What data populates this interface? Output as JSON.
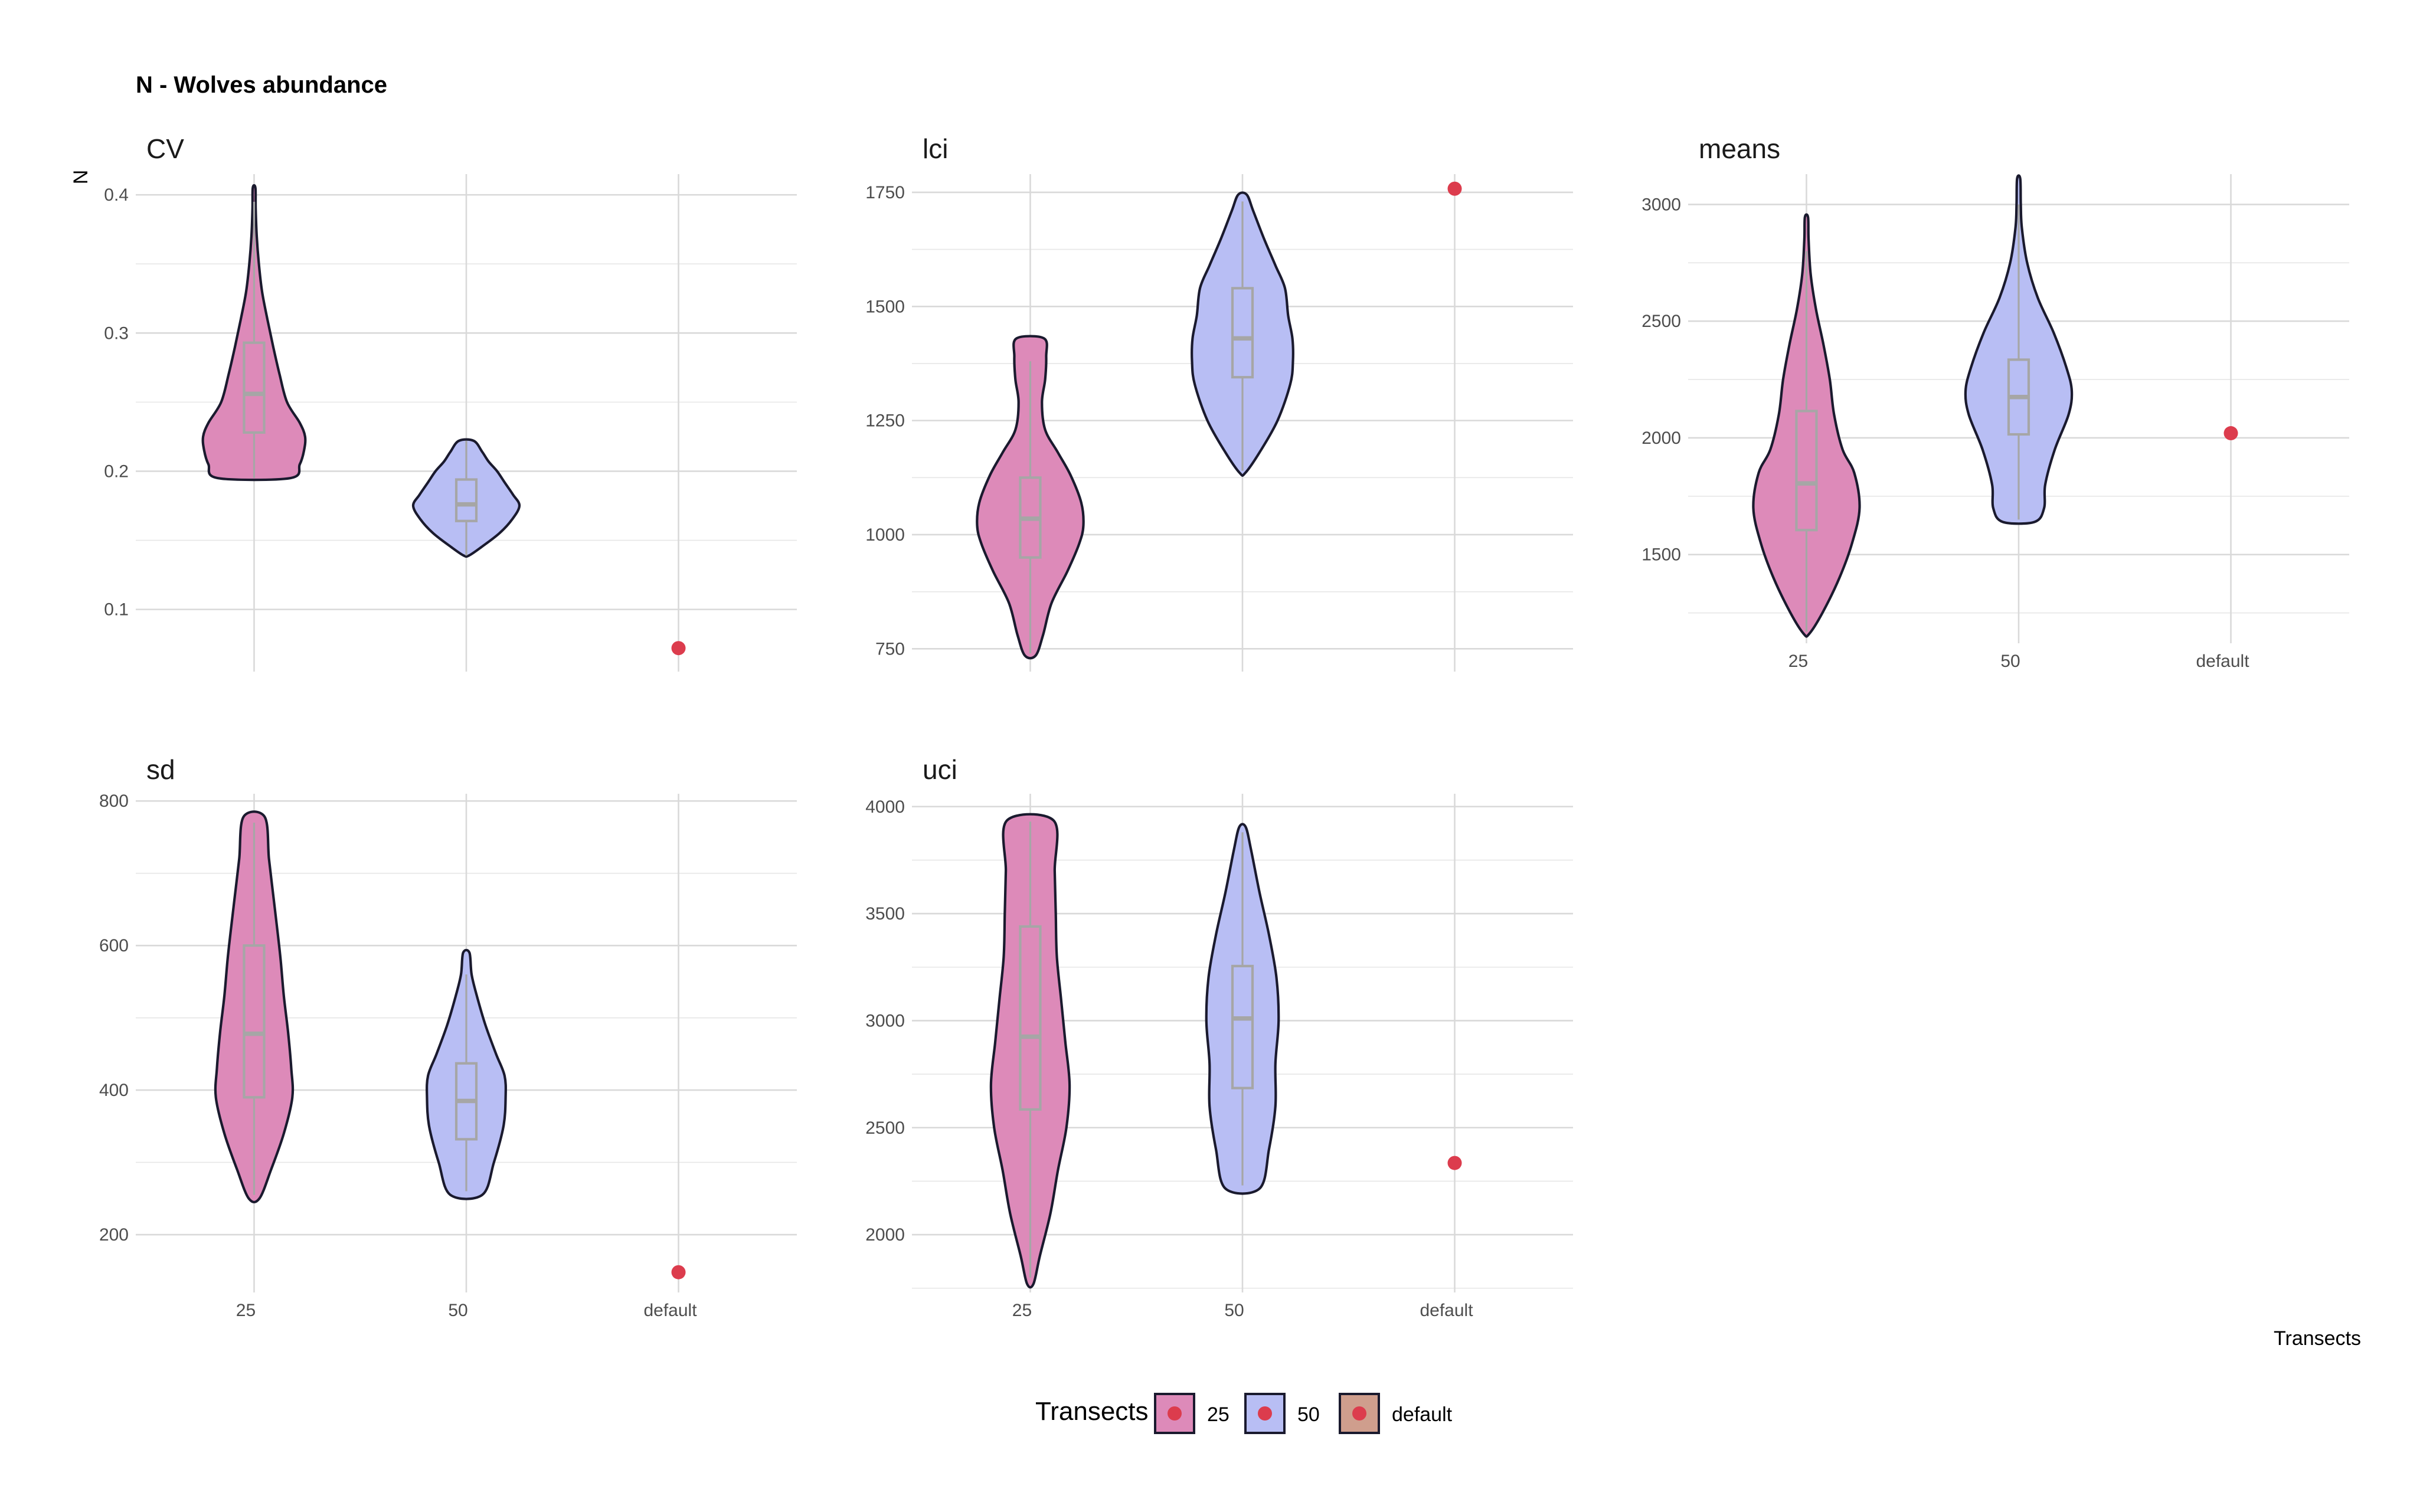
{
  "figure": {
    "title": "N - Wolves abundance",
    "y_axis_title": "N",
    "x_axis_title": "Transects"
  },
  "legend": {
    "title": "Transects",
    "items": [
      {
        "label": "25",
        "fill": "#dd8ab9"
      },
      {
        "label": "50",
        "fill": "#b8bef4"
      },
      {
        "label": "default",
        "fill": "#cf9e8d"
      }
    ],
    "point_color": "#dc3c4d",
    "position": "bottom"
  },
  "chart_data": [
    {
      "type": "violin",
      "facet": "CV",
      "categories": [
        "25",
        "50",
        "default"
      ],
      "ylim": [
        0.055,
        0.415
      ],
      "yticks": [
        0.1,
        0.2,
        0.3,
        0.4
      ],
      "ytick_labels": [
        "0.1",
        "0.2",
        "0.3",
        "0.4"
      ],
      "show_xticks": false,
      "series": [
        {
          "name": "25",
          "fill": "#dd8ab9",
          "violin": {
            "min": 0.195,
            "max": 0.405,
            "profile": [
              [
                0.195,
                0.68
              ],
              [
                0.205,
                0.86
              ],
              [
                0.215,
                0.94
              ],
              [
                0.225,
                0.96
              ],
              [
                0.235,
                0.86
              ],
              [
                0.25,
                0.62
              ],
              [
                0.27,
                0.48
              ],
              [
                0.29,
                0.36
              ],
              [
                0.31,
                0.25
              ],
              [
                0.33,
                0.15
              ],
              [
                0.35,
                0.09
              ],
              [
                0.37,
                0.05
              ],
              [
                0.39,
                0.03
              ],
              [
                0.405,
                0.025
              ]
            ]
          },
          "box": {
            "q1": 0.228,
            "median": 0.256,
            "q3": 0.293,
            "whisker_low": 0.195,
            "whisker_high": 0.395
          }
        },
        {
          "name": "50",
          "fill": "#b8bef4",
          "violin": {
            "min": 0.139,
            "max": 0.222,
            "profile": [
              [
                0.139,
                0.05
              ],
              [
                0.145,
                0.28
              ],
              [
                0.155,
                0.62
              ],
              [
                0.165,
                0.86
              ],
              [
                0.175,
                1.0
              ],
              [
                0.183,
                0.88
              ],
              [
                0.192,
                0.72
              ],
              [
                0.2,
                0.58
              ],
              [
                0.207,
                0.42
              ],
              [
                0.214,
                0.3
              ],
              [
                0.222,
                0.14
              ]
            ]
          },
          "box": {
            "q1": 0.164,
            "median": 0.176,
            "q3": 0.194,
            "whisker_low": 0.139,
            "whisker_high": 0.222
          }
        },
        {
          "name": "default",
          "point": 0.072
        }
      ]
    },
    {
      "type": "violin",
      "facet": "lci",
      "categories": [
        "25",
        "50",
        "default"
      ],
      "ylim": [
        700,
        1790
      ],
      "yticks": [
        750,
        1000,
        1250,
        1500,
        1750
      ],
      "ytick_labels": [
        "750",
        "1000",
        "1250",
        "1500",
        "1750"
      ],
      "show_xticks": false,
      "series": [
        {
          "name": "25",
          "fill": "#dd8ab9",
          "violin": {
            "min": 735,
            "max": 1430,
            "profile": [
              [
                735,
                0.1
              ],
              [
                780,
                0.24
              ],
              [
                850,
                0.4
              ],
              [
                920,
                0.7
              ],
              [
                980,
                0.92
              ],
              [
                1020,
                1.0
              ],
              [
                1070,
                0.96
              ],
              [
                1130,
                0.76
              ],
              [
                1180,
                0.52
              ],
              [
                1230,
                0.28
              ],
              [
                1290,
                0.22
              ],
              [
                1340,
                0.28
              ],
              [
                1390,
                0.3
              ],
              [
                1430,
                0.26
              ]
            ]
          },
          "box": {
            "q1": 950,
            "median": 1035,
            "q3": 1125,
            "whisker_low": 740,
            "whisker_high": 1380
          }
        },
        {
          "name": "50",
          "fill": "#b8bef4",
          "violin": {
            "min": 1135,
            "max": 1745,
            "profile": [
              [
                1135,
                0.05
              ],
              [
                1180,
                0.32
              ],
              [
                1250,
                0.66
              ],
              [
                1330,
                0.9
              ],
              [
                1380,
                0.95
              ],
              [
                1430,
                0.94
              ],
              [
                1480,
                0.86
              ],
              [
                1540,
                0.8
              ],
              [
                1590,
                0.62
              ],
              [
                1650,
                0.4
              ],
              [
                1710,
                0.2
              ],
              [
                1745,
                0.08
              ]
            ]
          },
          "box": {
            "q1": 1345,
            "median": 1430,
            "q3": 1540,
            "whisker_low": 1140,
            "whisker_high": 1730
          }
        },
        {
          "name": "default",
          "point": 1758
        }
      ]
    },
    {
      "type": "violin",
      "facet": "means",
      "categories": [
        "25",
        "50",
        "default"
      ],
      "ylim": [
        1120,
        3130
      ],
      "yticks": [
        1500,
        2000,
        2500,
        3000
      ],
      "ytick_labels": [
        "1500",
        "2000",
        "2500",
        "3000"
      ],
      "show_xticks": true,
      "series": [
        {
          "name": "25",
          "fill": "#dd8ab9",
          "violin": {
            "min": 1160,
            "max": 2945,
            "profile": [
              [
                1160,
                0.05
              ],
              [
                1250,
                0.3
              ],
              [
                1400,
                0.62
              ],
              [
                1550,
                0.86
              ],
              [
                1700,
                1.0
              ],
              [
                1850,
                0.9
              ],
              [
                1950,
                0.68
              ],
              [
                2100,
                0.52
              ],
              [
                2250,
                0.44
              ],
              [
                2400,
                0.32
              ],
              [
                2550,
                0.18
              ],
              [
                2700,
                0.08
              ],
              [
                2850,
                0.04
              ],
              [
                2945,
                0.03
              ]
            ]
          },
          "box": {
            "q1": 1605,
            "median": 1805,
            "q3": 2115,
            "whisker_low": 1170,
            "whisker_high": 2800
          }
        },
        {
          "name": "50",
          "fill": "#b8bef4",
          "violin": {
            "min": 1640,
            "max": 3110,
            "profile": [
              [
                1640,
                0.3
              ],
              [
                1700,
                0.48
              ],
              [
                1800,
                0.5
              ],
              [
                1950,
                0.68
              ],
              [
                2100,
                0.94
              ],
              [
                2200,
                1.0
              ],
              [
                2300,
                0.9
              ],
              [
                2450,
                0.66
              ],
              [
                2600,
                0.36
              ],
              [
                2750,
                0.16
              ],
              [
                2900,
                0.06
              ],
              [
                3000,
                0.04
              ],
              [
                3110,
                0.03
              ]
            ]
          },
          "box": {
            "q1": 2015,
            "median": 2175,
            "q3": 2335,
            "whisker_low": 1650,
            "whisker_high": 3000
          }
        },
        {
          "name": "default",
          "point": 2020
        }
      ]
    },
    {
      "type": "violin",
      "facet": "sd",
      "categories": [
        "25",
        "50",
        "default"
      ],
      "ylim": [
        120,
        810
      ],
      "yticks": [
        200,
        400,
        600,
        800
      ],
      "ytick_labels": [
        "200",
        "400",
        "600",
        "800"
      ],
      "show_xticks": true,
      "series": [
        {
          "name": "25",
          "fill": "#dd8ab9",
          "violin": {
            "min": 250,
            "max": 778,
            "profile": [
              [
                250,
                0.1
              ],
              [
                290,
                0.32
              ],
              [
                340,
                0.56
              ],
              [
                390,
                0.72
              ],
              [
                430,
                0.7
              ],
              [
                480,
                0.64
              ],
              [
                530,
                0.56
              ],
              [
                580,
                0.5
              ],
              [
                620,
                0.44
              ],
              [
                670,
                0.36
              ],
              [
                720,
                0.28
              ],
              [
                778,
                0.2
              ]
            ]
          },
          "box": {
            "q1": 390,
            "median": 478,
            "q3": 600,
            "whisker_low": 255,
            "whisker_high": 770
          }
        },
        {
          "name": "50",
          "fill": "#b8bef4",
          "violin": {
            "min": 255,
            "max": 590,
            "profile": [
              [
                255,
                0.3
              ],
              [
                300,
                0.52
              ],
              [
                350,
                0.7
              ],
              [
                390,
                0.74
              ],
              [
                420,
                0.72
              ],
              [
                450,
                0.56
              ],
              [
                490,
                0.36
              ],
              [
                530,
                0.2
              ],
              [
                560,
                0.1
              ],
              [
                590,
                0.06
              ]
            ]
          },
          "box": {
            "q1": 332,
            "median": 385,
            "q3": 437,
            "whisker_low": 260,
            "whisker_high": 560
          }
        },
        {
          "name": "default",
          "point": 148
        }
      ]
    },
    {
      "type": "violin",
      "facet": "uci",
      "categories": [
        "25",
        "50",
        "default"
      ],
      "ylim": [
        1730,
        4060
      ],
      "yticks": [
        2000,
        2500,
        3000,
        3500,
        4000
      ],
      "ytick_labels": [
        "2000",
        "2500",
        "3000",
        "3500",
        "4000"
      ],
      "show_xticks": true,
      "series": [
        {
          "name": "25",
          "fill": "#dd8ab9",
          "violin": {
            "min": 1770,
            "max": 3935,
            "profile": [
              [
                1770,
                0.06
              ],
              [
                1900,
                0.18
              ],
              [
                2100,
                0.38
              ],
              [
                2300,
                0.52
              ],
              [
                2500,
                0.68
              ],
              [
                2700,
                0.74
              ],
              [
                2900,
                0.66
              ],
              [
                3100,
                0.58
              ],
              [
                3300,
                0.5
              ],
              [
                3500,
                0.48
              ],
              [
                3700,
                0.46
              ],
              [
                3935,
                0.44
              ]
            ]
          },
          "box": {
            "q1": 2585,
            "median": 2925,
            "q3": 3440,
            "whisker_low": 1800,
            "whisker_high": 3930
          }
        },
        {
          "name": "50",
          "fill": "#b8bef4",
          "violin": {
            "min": 2215,
            "max": 3905,
            "profile": [
              [
                2215,
                0.32
              ],
              [
                2400,
                0.5
              ],
              [
                2600,
                0.62
              ],
              [
                2800,
                0.62
              ],
              [
                3000,
                0.68
              ],
              [
                3200,
                0.64
              ],
              [
                3400,
                0.5
              ],
              [
                3600,
                0.32
              ],
              [
                3800,
                0.16
              ],
              [
                3905,
                0.06
              ]
            ]
          },
          "box": {
            "q1": 2685,
            "median": 3010,
            "q3": 3255,
            "whisker_low": 2230,
            "whisker_high": 3880
          }
        },
        {
          "name": "default",
          "point": 2335
        }
      ]
    }
  ]
}
